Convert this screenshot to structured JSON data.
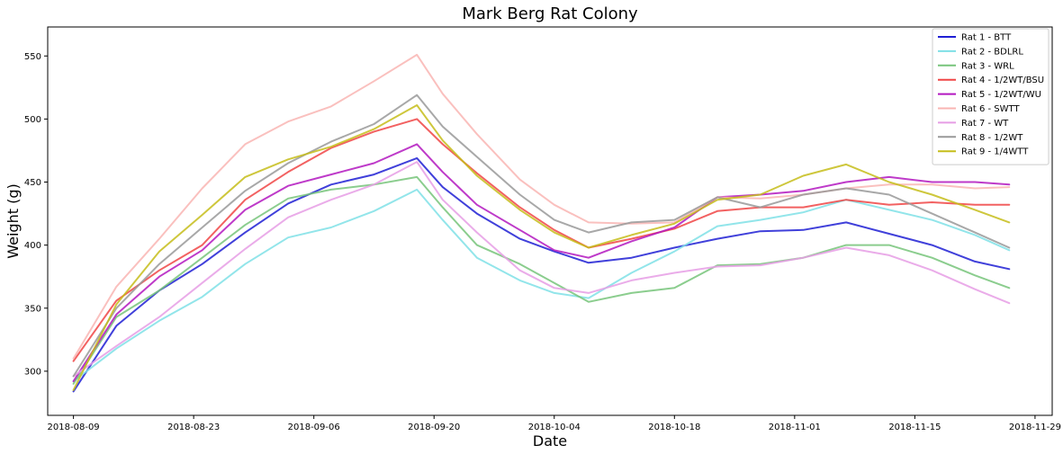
{
  "chart_data": {
    "type": "line",
    "title": "Mark Berg Rat Colony",
    "xlabel": "Date",
    "ylabel": "Weight (g)",
    "x_range_days": [
      -3,
      114
    ],
    "ylim": [
      265,
      573
    ],
    "x_ticks": [
      {
        "day": 0,
        "label": "2018-08-09"
      },
      {
        "day": 14,
        "label": "2018-08-23"
      },
      {
        "day": 28,
        "label": "2018-09-06"
      },
      {
        "day": 42,
        "label": "2018-09-20"
      },
      {
        "day": 56,
        "label": "2018-10-04"
      },
      {
        "day": 70,
        "label": "2018-10-18"
      },
      {
        "day": 84,
        "label": "2018-11-01"
      },
      {
        "day": 98,
        "label": "2018-11-15"
      },
      {
        "day": 112,
        "label": "2018-11-29"
      }
    ],
    "y_ticks": [
      300,
      350,
      400,
      450,
      500,
      550
    ],
    "y_tick_labels": [
      "300",
      "350",
      "400",
      "450",
      "500",
      "550"
    ],
    "x_days": [
      0,
      5,
      10,
      15,
      20,
      25,
      30,
      35,
      40,
      43,
      47,
      52,
      56,
      60,
      65,
      70,
      75,
      80,
      85,
      90,
      95,
      100,
      105,
      109
    ],
    "legend_position": "top-right",
    "series": [
      {
        "name": "Rat 1 - BTT",
        "color": "#1f1fd4",
        "values": [
          284,
          336,
          364,
          385,
          410,
          433,
          448,
          456,
          469,
          446,
          425,
          405,
          395,
          386,
          390,
          398,
          405,
          411,
          412,
          418,
          409,
          400,
          387,
          381
        ]
      },
      {
        "name": "Rat 2 - BDLRL",
        "color": "#7fe0e6",
        "values": [
          292,
          318,
          340,
          359,
          385,
          406,
          414,
          427,
          444,
          420,
          390,
          372,
          362,
          358,
          378,
          395,
          415,
          420,
          426,
          436,
          428,
          420,
          408,
          396
        ]
      },
      {
        "name": "Rat 3 - WRL",
        "color": "#77c47a",
        "values": [
          290,
          343,
          364,
          390,
          416,
          437,
          444,
          448,
          454,
          430,
          400,
          385,
          370,
          355,
          362,
          366,
          384,
          385,
          390,
          400,
          400,
          390,
          376,
          366
        ]
      },
      {
        "name": "Rat 4 - 1/2WT/BSU",
        "color": "#f04545",
        "values": [
          308,
          356,
          380,
          400,
          436,
          458,
          477,
          490,
          500,
          480,
          457,
          430,
          412,
          398,
          405,
          413,
          427,
          430,
          430,
          436,
          432,
          434,
          432,
          432
        ]
      },
      {
        "name": "Rat 5 - 1/2WT/WU",
        "color": "#b318c0",
        "values": [
          292,
          345,
          375,
          396,
          428,
          447,
          456,
          465,
          480,
          458,
          432,
          412,
          396,
          390,
          403,
          414,
          438,
          440,
          443,
          450,
          454,
          450,
          450,
          448
        ]
      },
      {
        "name": "Rat 6 - SWTT",
        "color": "#f9b5b3",
        "values": [
          310,
          367,
          405,
          445,
          480,
          498,
          510,
          530,
          551,
          520,
          488,
          452,
          432,
          418,
          417,
          418,
          438,
          437,
          440,
          445,
          448,
          448,
          445,
          446
        ]
      },
      {
        "name": "Rat 7 - WT",
        "color": "#e69de5",
        "values": [
          296,
          320,
          343,
          370,
          397,
          422,
          436,
          448,
          466,
          436,
          410,
          380,
          366,
          362,
          372,
          378,
          383,
          384,
          390,
          398,
          392,
          380,
          365,
          354
        ]
      },
      {
        "name": "Rat 8 - 1/2WT",
        "color": "#999999",
        "values": [
          296,
          350,
          385,
          414,
          443,
          465,
          482,
          496,
          519,
          494,
          470,
          440,
          420,
          410,
          418,
          420,
          438,
          430,
          440,
          445,
          440,
          425,
          410,
          398
        ]
      },
      {
        "name": "Rat 9 - 1/4WTT",
        "color": "#c5bd1a",
        "values": [
          285,
          353,
          395,
          424,
          454,
          468,
          478,
          492,
          511,
          483,
          455,
          428,
          410,
          398,
          408,
          417,
          436,
          440,
          455,
          464,
          450,
          440,
          428,
          418
        ]
      }
    ]
  }
}
